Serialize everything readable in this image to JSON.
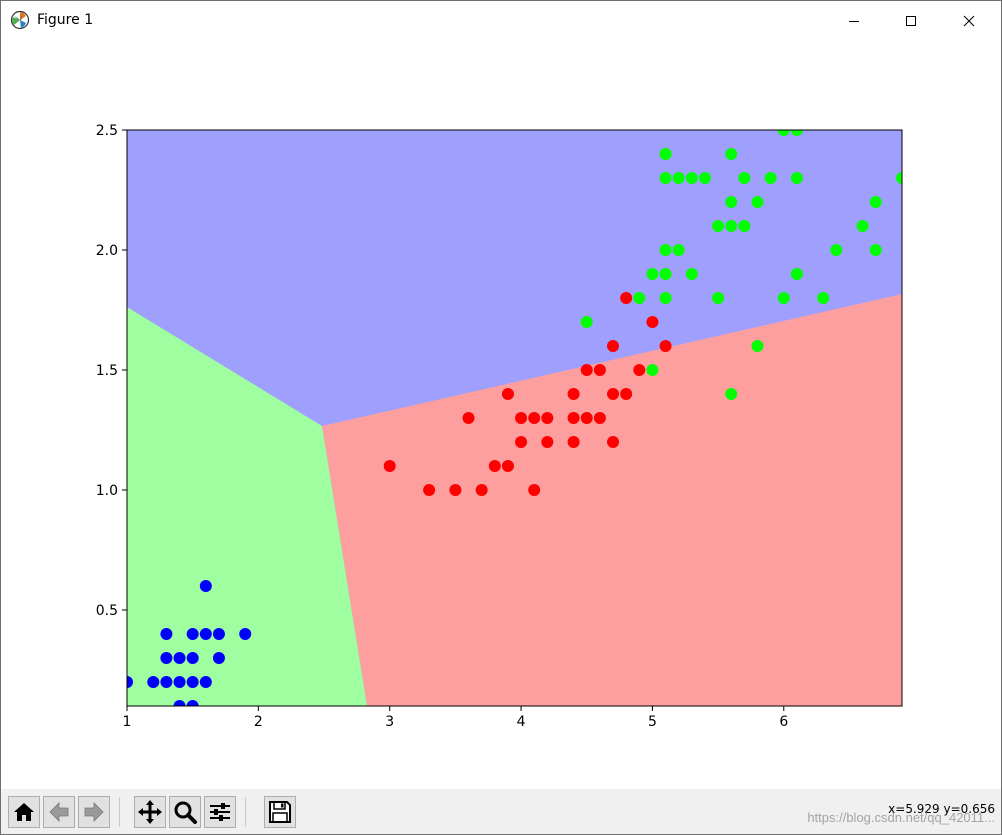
{
  "window": {
    "title": "Figure 1"
  },
  "toolbar": {
    "buttons": [
      "home-icon",
      "back-arrow-icon",
      "forward-arrow-icon",
      "pan-icon",
      "zoom-icon",
      "configure-subplots-icon",
      "save-icon"
    ],
    "coordinates": "x=5.929 y=0.656",
    "watermark": "https://blog.csdn.net/qq_42011..."
  },
  "chart_data": {
    "type": "scatter",
    "xlim": [
      1.0,
      6.9
    ],
    "ylim": [
      0.1,
      2.5
    ],
    "xticks": [
      "1",
      "2",
      "3",
      "4",
      "5",
      "6"
    ],
    "yticks": [
      "0.5",
      "1.0",
      "1.5",
      "2.0",
      "2.5"
    ],
    "title": "",
    "xlabel": "",
    "ylabel": "",
    "grid": false,
    "regions": [
      {
        "class": "green",
        "color": "#9ffe9f"
      },
      {
        "class": "red",
        "color": "#fe9f9f"
      },
      {
        "class": "blue",
        "color": "#9f9ffe"
      }
    ],
    "series": [
      {
        "color": "#0000ff",
        "points": [
          [
            1.0,
            0.2
          ],
          [
            1.2,
            0.2
          ],
          [
            1.3,
            0.2
          ],
          [
            1.4,
            0.2
          ],
          [
            1.5,
            0.2
          ],
          [
            1.6,
            0.2
          ],
          [
            1.3,
            0.3
          ],
          [
            1.4,
            0.3
          ],
          [
            1.5,
            0.3
          ],
          [
            1.7,
            0.3
          ],
          [
            1.3,
            0.4
          ],
          [
            1.5,
            0.4
          ],
          [
            1.6,
            0.4
          ],
          [
            1.7,
            0.4
          ],
          [
            1.9,
            0.4
          ],
          [
            1.6,
            0.6
          ],
          [
            1.4,
            0.1
          ],
          [
            1.5,
            0.1
          ]
        ]
      },
      {
        "color": "#ff0000",
        "points": [
          [
            3.0,
            1.1
          ],
          [
            3.3,
            1.0
          ],
          [
            3.5,
            1.0
          ],
          [
            3.7,
            1.0
          ],
          [
            4.1,
            1.0
          ],
          [
            3.8,
            1.1
          ],
          [
            3.9,
            1.1
          ],
          [
            4.0,
            1.2
          ],
          [
            4.2,
            1.2
          ],
          [
            4.4,
            1.2
          ],
          [
            4.7,
            1.2
          ],
          [
            3.6,
            1.3
          ],
          [
            4.0,
            1.3
          ],
          [
            4.1,
            1.3
          ],
          [
            4.2,
            1.3
          ],
          [
            4.4,
            1.3
          ],
          [
            4.5,
            1.3
          ],
          [
            4.6,
            1.3
          ],
          [
            3.9,
            1.4
          ],
          [
            4.4,
            1.4
          ],
          [
            4.7,
            1.4
          ],
          [
            4.8,
            1.4
          ],
          [
            4.5,
            1.5
          ],
          [
            4.6,
            1.5
          ],
          [
            4.9,
            1.5
          ],
          [
            4.7,
            1.6
          ],
          [
            5.1,
            1.6
          ],
          [
            5.0,
            1.7
          ],
          [
            4.8,
            1.8
          ]
        ]
      },
      {
        "color": "#00ff00",
        "points": [
          [
            5.6,
            1.4
          ],
          [
            5.0,
            1.5
          ],
          [
            4.5,
            1.7
          ],
          [
            5.8,
            1.6
          ],
          [
            4.9,
            1.8
          ],
          [
            5.1,
            1.8
          ],
          [
            5.5,
            1.8
          ],
          [
            6.0,
            1.8
          ],
          [
            6.3,
            1.8
          ],
          [
            5.0,
            1.9
          ],
          [
            5.1,
            1.9
          ],
          [
            5.3,
            1.9
          ],
          [
            6.1,
            1.9
          ],
          [
            5.1,
            2.0
          ],
          [
            5.2,
            2.0
          ],
          [
            6.4,
            2.0
          ],
          [
            6.7,
            2.0
          ],
          [
            5.5,
            2.1
          ],
          [
            5.6,
            2.1
          ],
          [
            5.7,
            2.1
          ],
          [
            6.6,
            2.1
          ],
          [
            5.6,
            2.2
          ],
          [
            5.8,
            2.2
          ],
          [
            6.7,
            2.2
          ],
          [
            5.1,
            2.3
          ],
          [
            5.2,
            2.3
          ],
          [
            5.3,
            2.3
          ],
          [
            5.4,
            2.3
          ],
          [
            5.7,
            2.3
          ],
          [
            5.9,
            2.3
          ],
          [
            6.1,
            2.3
          ],
          [
            6.9,
            2.3
          ],
          [
            5.1,
            2.4
          ],
          [
            5.6,
            2.4
          ],
          [
            6.0,
            2.5
          ],
          [
            6.1,
            2.5
          ]
        ]
      }
    ]
  }
}
